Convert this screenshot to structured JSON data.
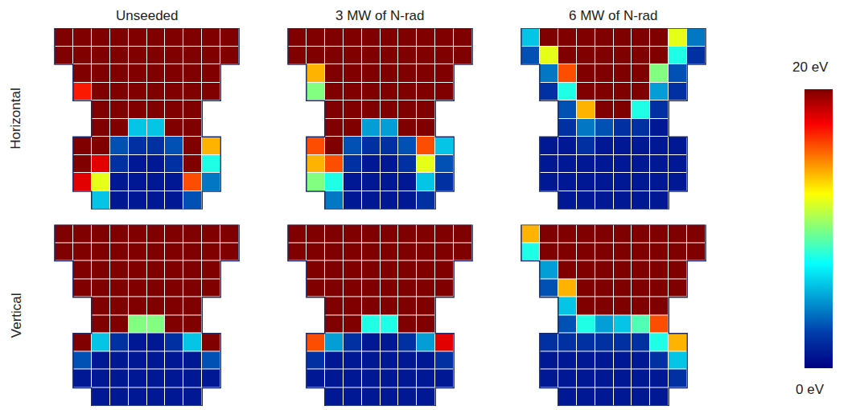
{
  "chart_data": {
    "type": "heatmap",
    "color": "jet",
    "tick_labels": false,
    "columns": [
      "Unseeded",
      "3 MW of N-rad",
      "6 MW of N-rad"
    ],
    "rows": [
      "Horizontal",
      "Vertical"
    ],
    "colorbar": {
      "range": [
        0,
        20
      ],
      "ticks": [
        {
          "value": 0,
          "label": "0 eV"
        },
        {
          "value": 20,
          "label": "20 eV"
        }
      ]
    },
    "panels": [
      {
        "row": "Horizontal",
        "column": "Unseeded",
        "z": [
          [
            null,
            20,
            20,
            20,
            20,
            20,
            20,
            20,
            20,
            20,
            20,
            null
          ],
          [
            null,
            20,
            20,
            20,
            20,
            20,
            20,
            20,
            20,
            20,
            20,
            null
          ],
          [
            null,
            null,
            20,
            20,
            20,
            20,
            20,
            20,
            20,
            20,
            null,
            null
          ],
          [
            null,
            null,
            17,
            20,
            20,
            20,
            20,
            20,
            20,
            20,
            null,
            null
          ],
          [
            null,
            null,
            null,
            20,
            20,
            20,
            20,
            20,
            20,
            null,
            null,
            null
          ],
          [
            null,
            null,
            null,
            20,
            20,
            6,
            6,
            20,
            20,
            null,
            null,
            null
          ],
          [
            null,
            null,
            20,
            20,
            3,
            2,
            2,
            3,
            20,
            14,
            null,
            null
          ],
          [
            null,
            null,
            20,
            18,
            2,
            1,
            1,
            2,
            20,
            8,
            null,
            null
          ],
          [
            null,
            null,
            18,
            12,
            1,
            1,
            1,
            1,
            16,
            4,
            null,
            null
          ],
          [
            null,
            null,
            null,
            6,
            1,
            1,
            1,
            1,
            3,
            null,
            null,
            null
          ]
        ]
      },
      {
        "row": "Horizontal",
        "column": "3 MW of N-rad",
        "z": [
          [
            null,
            20,
            20,
            20,
            20,
            20,
            20,
            20,
            20,
            20,
            20,
            null
          ],
          [
            null,
            20,
            20,
            20,
            20,
            20,
            20,
            20,
            20,
            20,
            20,
            null
          ],
          [
            null,
            null,
            14,
            20,
            20,
            20,
            20,
            20,
            20,
            20,
            null,
            null
          ],
          [
            null,
            null,
            10,
            20,
            20,
            20,
            20,
            20,
            20,
            20,
            null,
            null
          ],
          [
            null,
            null,
            null,
            20,
            20,
            20,
            20,
            20,
            20,
            null,
            null,
            null
          ],
          [
            null,
            null,
            null,
            20,
            20,
            5,
            5,
            20,
            20,
            null,
            null,
            null
          ],
          [
            null,
            null,
            16,
            20,
            3,
            2,
            2,
            3,
            16,
            6,
            null,
            null
          ],
          [
            null,
            null,
            14,
            16,
            2,
            1,
            1,
            2,
            12,
            3,
            null,
            null
          ],
          [
            null,
            null,
            10,
            8,
            1,
            1,
            1,
            1,
            6,
            2,
            null,
            null
          ],
          [
            null,
            null,
            null,
            4,
            1,
            1,
            1,
            1,
            2,
            null,
            null,
            null
          ]
        ]
      },
      {
        "row": "Horizontal",
        "column": "6 MW of N-rad",
        "z": [
          [
            null,
            6,
            20,
            20,
            20,
            20,
            20,
            20,
            20,
            12,
            4,
            null
          ],
          [
            null,
            3,
            12,
            20,
            20,
            20,
            20,
            20,
            20,
            8,
            2,
            null
          ],
          [
            null,
            null,
            4,
            16,
            20,
            20,
            20,
            20,
            10,
            3,
            null,
            null
          ],
          [
            null,
            null,
            2,
            8,
            20,
            20,
            20,
            20,
            5,
            2,
            null,
            null
          ],
          [
            null,
            null,
            null,
            3,
            14,
            20,
            20,
            8,
            2,
            null,
            null,
            null
          ],
          [
            null,
            null,
            null,
            2,
            4,
            3,
            2,
            2,
            1,
            null,
            null,
            null
          ],
          [
            null,
            null,
            1,
            1,
            2,
            1,
            1,
            1,
            1,
            1,
            null,
            null
          ],
          [
            null,
            null,
            1,
            1,
            1,
            1,
            1,
            1,
            1,
            1,
            null,
            null
          ],
          [
            null,
            null,
            1,
            1,
            1,
            1,
            1,
            1,
            1,
            1,
            null,
            null
          ],
          [
            null,
            null,
            null,
            1,
            1,
            1,
            1,
            1,
            1,
            null,
            null,
            null
          ]
        ]
      },
      {
        "row": "Vertical",
        "column": "Unseeded",
        "z": [
          [
            null,
            20,
            20,
            20,
            20,
            20,
            20,
            20,
            20,
            20,
            20,
            null
          ],
          [
            null,
            20,
            20,
            20,
            20,
            20,
            20,
            20,
            20,
            20,
            20,
            null
          ],
          [
            null,
            null,
            20,
            20,
            20,
            20,
            20,
            20,
            20,
            20,
            null,
            null
          ],
          [
            null,
            null,
            20,
            20,
            20,
            20,
            20,
            20,
            20,
            20,
            null,
            null
          ],
          [
            null,
            null,
            null,
            20,
            20,
            20,
            20,
            20,
            20,
            null,
            null,
            null
          ],
          [
            null,
            null,
            null,
            20,
            20,
            10,
            10,
            20,
            20,
            null,
            null,
            null
          ],
          [
            null,
            null,
            20,
            6,
            2,
            1,
            1,
            2,
            6,
            20,
            null,
            null
          ],
          [
            null,
            null,
            3,
            1,
            1,
            1,
            1,
            1,
            1,
            3,
            null,
            null
          ],
          [
            null,
            null,
            1,
            1,
            1,
            1,
            1,
            1,
            1,
            1,
            null,
            null
          ],
          [
            null,
            null,
            null,
            1,
            1,
            1,
            1,
            1,
            1,
            null,
            null,
            null
          ]
        ]
      },
      {
        "row": "Vertical",
        "column": "3 MW of N-rad",
        "z": [
          [
            null,
            20,
            20,
            20,
            20,
            20,
            20,
            20,
            20,
            20,
            20,
            null
          ],
          [
            null,
            20,
            20,
            20,
            20,
            20,
            20,
            20,
            20,
            20,
            20,
            null
          ],
          [
            null,
            null,
            20,
            20,
            20,
            20,
            20,
            20,
            20,
            20,
            null,
            null
          ],
          [
            null,
            null,
            20,
            20,
            20,
            20,
            20,
            20,
            20,
            20,
            null,
            null
          ],
          [
            null,
            null,
            null,
            20,
            20,
            20,
            20,
            20,
            20,
            null,
            null,
            null
          ],
          [
            null,
            null,
            null,
            20,
            20,
            8,
            8,
            20,
            20,
            null,
            null,
            null
          ],
          [
            null,
            null,
            16,
            5,
            2,
            1,
            1,
            2,
            5,
            18,
            null,
            null
          ],
          [
            null,
            null,
            2,
            1,
            1,
            1,
            1,
            1,
            1,
            2,
            null,
            null
          ],
          [
            null,
            null,
            1,
            1,
            1,
            1,
            1,
            1,
            1,
            1,
            null,
            null
          ],
          [
            null,
            null,
            null,
            1,
            1,
            1,
            1,
            1,
            1,
            null,
            null,
            null
          ]
        ]
      },
      {
        "row": "Vertical",
        "column": "6 MW of N-rad",
        "z": [
          [
            null,
            14,
            20,
            20,
            20,
            20,
            20,
            20,
            20,
            20,
            20,
            null
          ],
          [
            null,
            8,
            20,
            20,
            20,
            20,
            20,
            20,
            20,
            20,
            20,
            null
          ],
          [
            null,
            null,
            5,
            20,
            20,
            20,
            20,
            20,
            20,
            20,
            null,
            null
          ],
          [
            null,
            null,
            3,
            14,
            20,
            20,
            20,
            20,
            20,
            20,
            null,
            null
          ],
          [
            null,
            null,
            null,
            6,
            20,
            20,
            20,
            20,
            20,
            null,
            null,
            null
          ],
          [
            null,
            null,
            null,
            3,
            8,
            5,
            6,
            9,
            16,
            null,
            null,
            null
          ],
          [
            null,
            null,
            2,
            2,
            2,
            2,
            2,
            2,
            8,
            14,
            null,
            null
          ],
          [
            null,
            null,
            1,
            1,
            1,
            1,
            1,
            1,
            2,
            6,
            null,
            null
          ],
          [
            null,
            null,
            1,
            1,
            1,
            1,
            1,
            1,
            1,
            2,
            null,
            null
          ],
          [
            null,
            null,
            null,
            1,
            1,
            1,
            1,
            1,
            1,
            null,
            null,
            null
          ]
        ]
      }
    ]
  }
}
